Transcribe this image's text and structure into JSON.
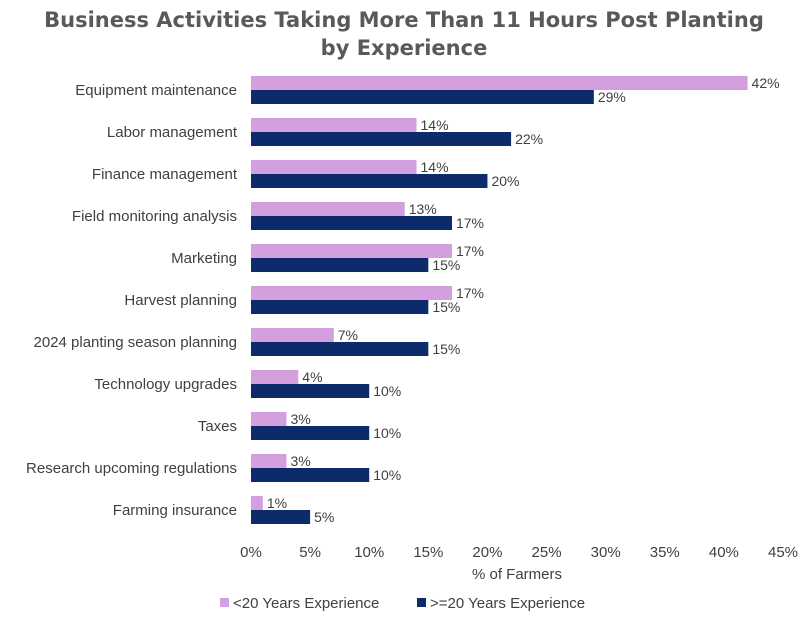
{
  "chart_data": {
    "type": "bar",
    "orientation": "horizontal",
    "title_line1": "Business Activities Taking More Than 11 Hours Post Planting",
    "title_line2": "by Experience",
    "xlabel": "% of Farmers",
    "ylabel": "",
    "xlim": [
      0,
      45
    ],
    "xticks": [
      "0%",
      "5%",
      "10%",
      "15%",
      "20%",
      "25%",
      "30%",
      "35%",
      "40%",
      "45%"
    ],
    "grid": false,
    "legend_position": "bottom",
    "categories": [
      "Equipment maintenance",
      "Labor management",
      "Finance management",
      "Field monitoring analysis",
      "Marketing",
      "Harvest planning",
      "2024 planting season planning",
      "Technology upgrades",
      "Taxes",
      "Research upcoming regulations",
      "Farming insurance"
    ],
    "series": [
      {
        "name": "<20 Years Experience",
        "color": "#d49fdf",
        "values": [
          42,
          14,
          14,
          13,
          17,
          17,
          7,
          4,
          3,
          3,
          1
        ],
        "labels": [
          "42%",
          "14%",
          "14%",
          "13%",
          "17%",
          "17%",
          "7%",
          "4%",
          "3%",
          "3%",
          "1%"
        ]
      },
      {
        "name": ">=20 Years Experience",
        "color": "#0d2a6b",
        "values": [
          29,
          22,
          20,
          17,
          15,
          15,
          15,
          10,
          10,
          10,
          5
        ],
        "labels": [
          "29%",
          "22%",
          "20%",
          "17%",
          "15%",
          "15%",
          "15%",
          "10%",
          "10%",
          "10%",
          "5%"
        ]
      }
    ]
  }
}
